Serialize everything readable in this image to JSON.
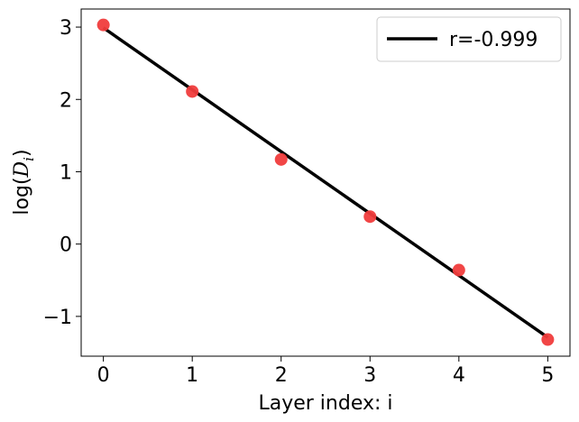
{
  "chart_data": {
    "type": "scatter",
    "title": "",
    "xlabel": "Layer index: i",
    "ylabel_main": "log(",
    "ylabel_var": "D",
    "ylabel_sub": "i",
    "ylabel_close": ")",
    "xlim": [
      -0.25,
      5.25
    ],
    "ylim": [
      -1.55,
      3.25
    ],
    "xticks": [
      0,
      1,
      2,
      3,
      4,
      5
    ],
    "xtick_labels": [
      "0",
      "1",
      "2",
      "3",
      "4",
      "5"
    ],
    "yticks": [
      -1,
      0,
      1,
      2,
      3
    ],
    "ytick_labels": [
      "−1",
      "0",
      "1",
      "2",
      "3"
    ],
    "grid": false,
    "legend_position": "top-right",
    "series": [
      {
        "kind": "scatter",
        "x": [
          0,
          1,
          2,
          3,
          4,
          5
        ],
        "y": [
          3.03,
          2.11,
          1.17,
          0.38,
          -0.36,
          -1.32
        ],
        "color": "#f03c3c"
      },
      {
        "kind": "line",
        "name": "r=-0.999",
        "x": [
          0,
          5
        ],
        "y": [
          2.99,
          -1.29
        ],
        "color": "#000000"
      }
    ]
  }
}
